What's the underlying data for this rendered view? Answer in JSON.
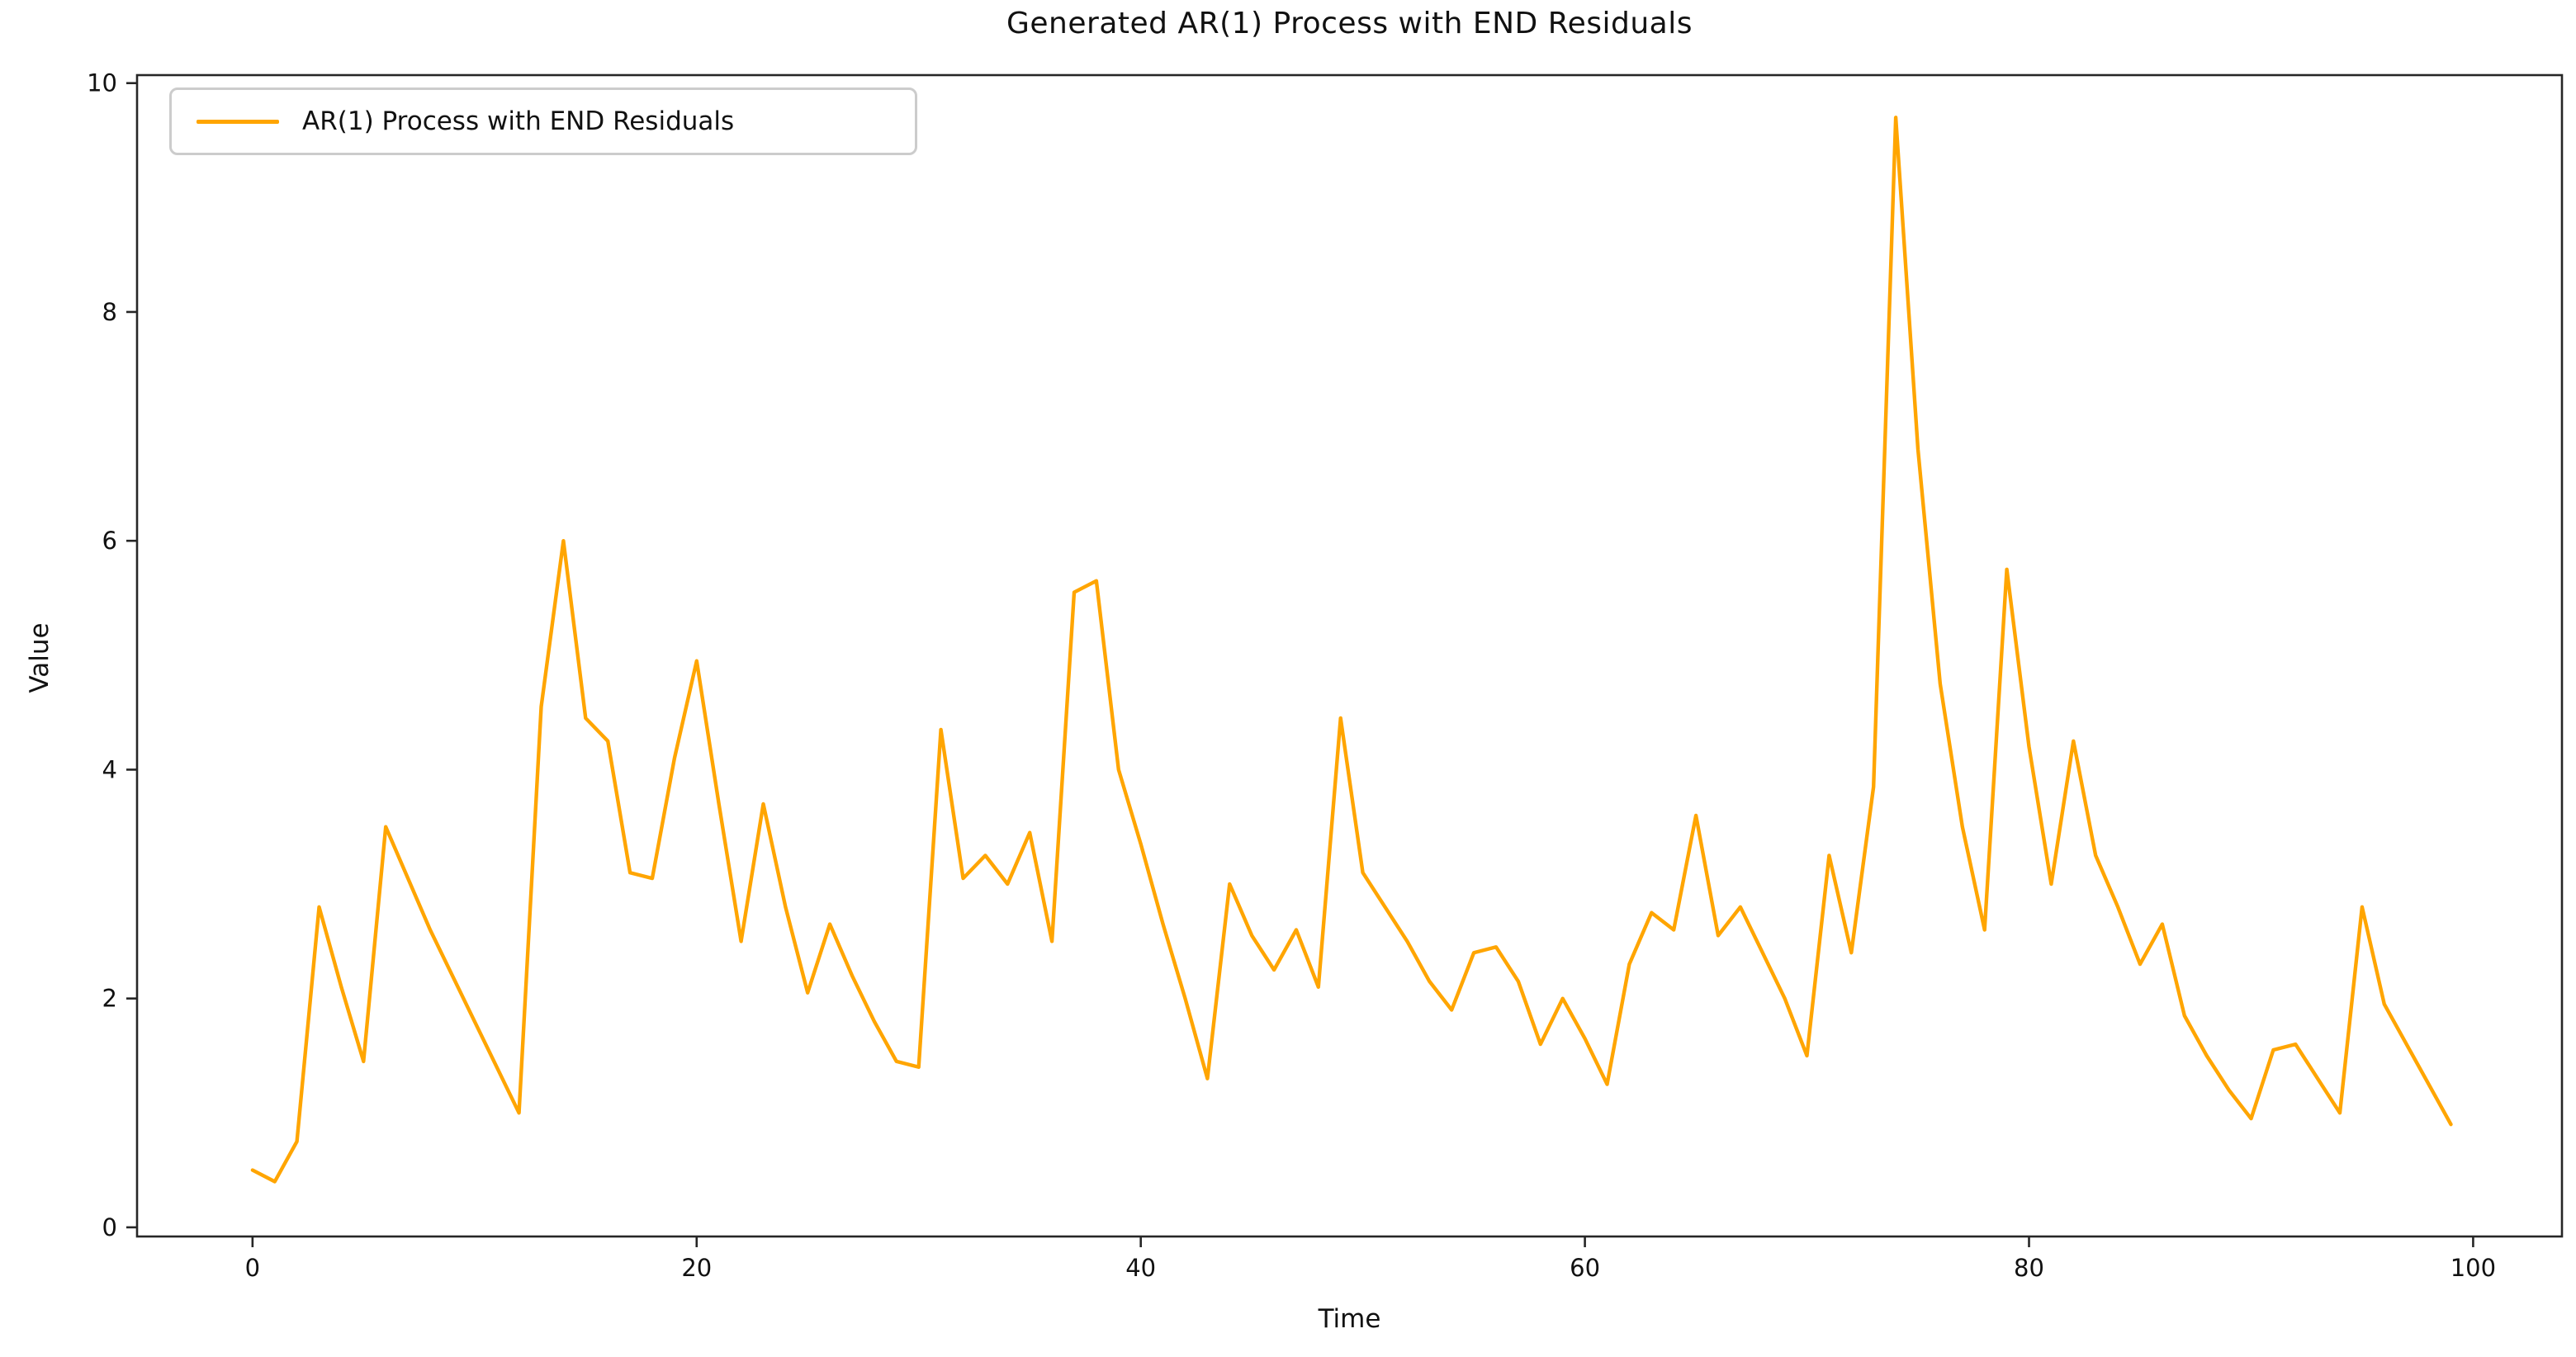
{
  "chart_data": {
    "type": "line",
    "title": "Generated AR(1) Process with END Residuals",
    "xlabel": "Time",
    "ylabel": "Value",
    "legend": {
      "position": "upper left",
      "entries": [
        "AR(1) Process with END Residuals"
      ]
    },
    "line_color": "#FFA500",
    "grid": false,
    "xlim": [
      -5.2,
      104
    ],
    "ylim": [
      -0.08,
      10.07
    ],
    "xticks": [
      0,
      20,
      40,
      60,
      80,
      100
    ],
    "yticks": [
      0,
      2,
      4,
      6,
      8,
      10
    ],
    "n_points": 100,
    "x_description": "integer time index 0 to 99, step 1",
    "values": [
      0.5,
      0.4,
      0.75,
      2.8,
      2.1,
      1.45,
      3.5,
      3.05,
      2.6,
      2.2,
      1.8,
      1.4,
      1.0,
      4.55,
      6.0,
      4.45,
      4.25,
      3.1,
      3.05,
      4.1,
      4.95,
      3.7,
      2.5,
      3.7,
      2.8,
      2.05,
      2.65,
      2.2,
      1.8,
      1.45,
      1.4,
      4.35,
      3.05,
      3.25,
      3.0,
      3.45,
      2.5,
      5.55,
      5.65,
      4.0,
      3.35,
      2.65,
      2.0,
      1.3,
      3.0,
      2.55,
      2.25,
      2.6,
      2.1,
      4.45,
      3.1,
      2.8,
      2.5,
      2.15,
      1.9,
      2.4,
      2.45,
      2.15,
      1.6,
      2.0,
      1.65,
      1.25,
      2.3,
      2.75,
      2.6,
      3.6,
      2.55,
      2.8,
      2.4,
      2.0,
      1.5,
      3.25,
      2.4,
      3.85,
      9.7,
      6.8,
      4.75,
      3.5,
      2.6,
      5.75,
      4.2,
      3.0,
      4.25,
      3.25,
      2.8,
      2.3,
      2.65,
      1.85,
      1.5,
      1.2,
      0.95,
      1.55,
      1.6,
      1.3,
      1.0,
      2.8,
      1.95,
      1.6,
      1.25,
      0.9
    ],
    "axis_color": "#262626",
    "tick_label_color": "#111111"
  }
}
